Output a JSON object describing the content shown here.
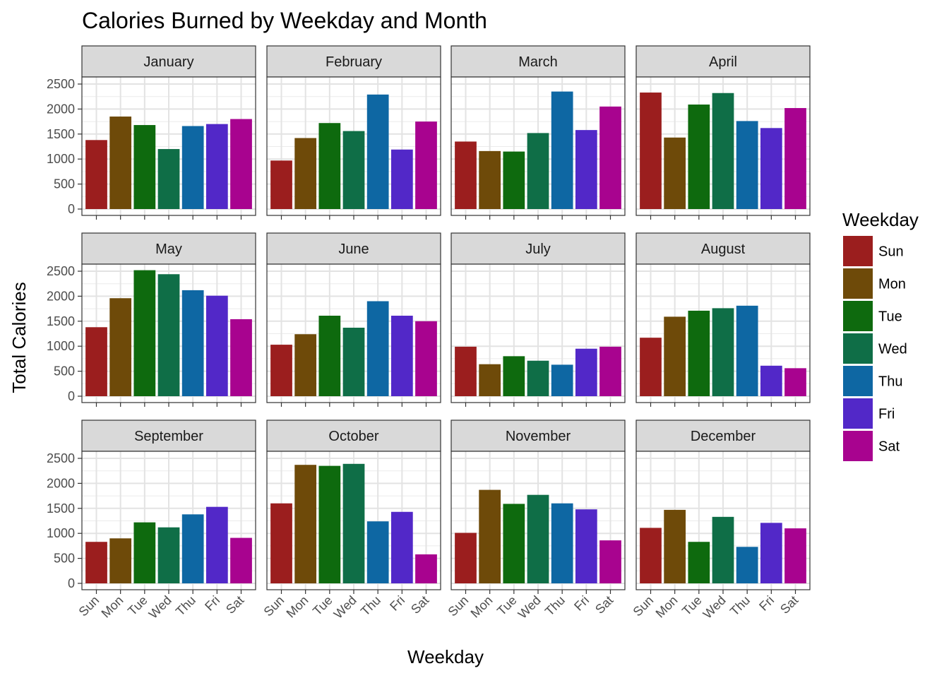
{
  "chart_data": {
    "type": "bar",
    "title": "Calories Burned by Weekday and Month",
    "xlabel": "Weekday",
    "ylabel": "Total Calories",
    "categories": [
      "Sun",
      "Mon",
      "Tue",
      "Wed",
      "Thu",
      "Fri",
      "Sat"
    ],
    "ylim": [
      0,
      2500
    ],
    "yticks": [
      0,
      500,
      1000,
      1500,
      2000,
      2500
    ],
    "grid": true,
    "legend": {
      "title": "Weekday",
      "placement": "right",
      "entries": [
        "Sun",
        "Mon",
        "Tue",
        "Wed",
        "Thu",
        "Fri",
        "Sat"
      ]
    },
    "colors": {
      "Sun": "#9b1e1e",
      "Mon": "#6e4a09",
      "Tue": "#0e6a0e",
      "Wed": "#0f6e47",
      "Thu": "#0e67a3",
      "Fri": "#5228c8",
      "Sat": "#a8038f"
    },
    "facets": [
      {
        "month": "January",
        "values": [
          1380,
          1850,
          1680,
          1200,
          1660,
          1700,
          1800
        ]
      },
      {
        "month": "February",
        "values": [
          970,
          1420,
          1720,
          1560,
          2290,
          1190,
          1750
        ]
      },
      {
        "month": "March",
        "values": [
          1350,
          1160,
          1150,
          1520,
          2350,
          1580,
          2050
        ]
      },
      {
        "month": "April",
        "values": [
          2330,
          1430,
          2090,
          2320,
          1760,
          1620,
          2020
        ]
      },
      {
        "month": "May",
        "values": [
          1380,
          1960,
          2520,
          2440,
          2120,
          2010,
          1540
        ]
      },
      {
        "month": "June",
        "values": [
          1030,
          1240,
          1610,
          1370,
          1900,
          1610,
          1500
        ]
      },
      {
        "month": "July",
        "values": [
          990,
          640,
          800,
          710,
          630,
          950,
          990
        ]
      },
      {
        "month": "August",
        "values": [
          1170,
          1590,
          1710,
          1760,
          1810,
          610,
          560
        ]
      },
      {
        "month": "September",
        "values": [
          830,
          900,
          1220,
          1120,
          1380,
          1530,
          910
        ]
      },
      {
        "month": "October",
        "values": [
          1600,
          2370,
          2350,
          2390,
          1240,
          1430,
          580
        ]
      },
      {
        "month": "November",
        "values": [
          1010,
          1870,
          1590,
          1770,
          1600,
          1480,
          860
        ]
      },
      {
        "month": "December",
        "values": [
          1110,
          1470,
          830,
          1330,
          730,
          1210,
          1100
        ]
      }
    ]
  }
}
